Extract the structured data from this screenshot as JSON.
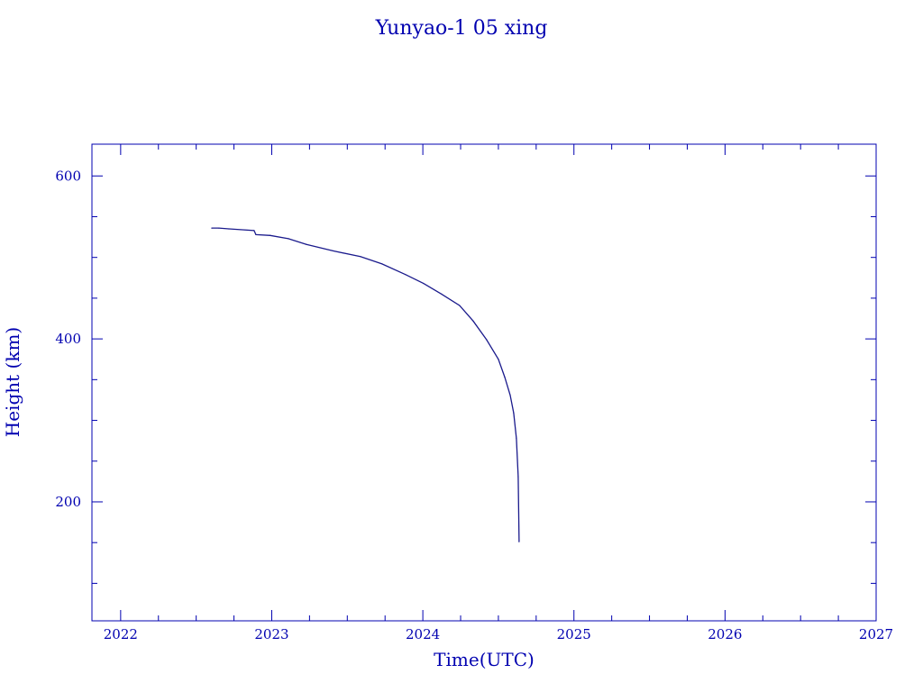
{
  "chart_data": {
    "type": "line",
    "title": "Yunyao-1 05 xing",
    "xlabel": "Time(UTC)",
    "ylabel": "Height (km)",
    "xlim": [
      2021.81,
      2027
    ],
    "ylim": [
      54,
      639
    ],
    "xticks": [
      2022,
      2023,
      2024,
      2025,
      2026,
      2027
    ],
    "xtick_labels": [
      "2022",
      "2023",
      "2024",
      "2025",
      "2026",
      "2027"
    ],
    "yticks": [
      200,
      400,
      600
    ],
    "ytick_labels": [
      "200",
      "400",
      "600"
    ],
    "grid": false,
    "colors": {
      "axes": "#0000b0",
      "line": "#1a1a8c"
    },
    "series": [
      {
        "x": [
          2022.603,
          2022.65,
          2022.716,
          2022.883,
          2022.895,
          2022.99,
          2023.11,
          2023.229,
          2023.408,
          2023.587,
          2023.73,
          2023.885,
          2024.005,
          2024.124,
          2024.243,
          2024.333,
          2024.422,
          2024.5,
          2024.542,
          2024.578,
          2024.601,
          2024.619,
          2024.631,
          2024.637
        ],
        "y": [
          536,
          536,
          535,
          533,
          528,
          527,
          523,
          516,
          508,
          501,
          492,
          479,
          468,
          455,
          441,
          422,
          399,
          375,
          353,
          331,
          309,
          278,
          231,
          151
        ]
      }
    ]
  }
}
